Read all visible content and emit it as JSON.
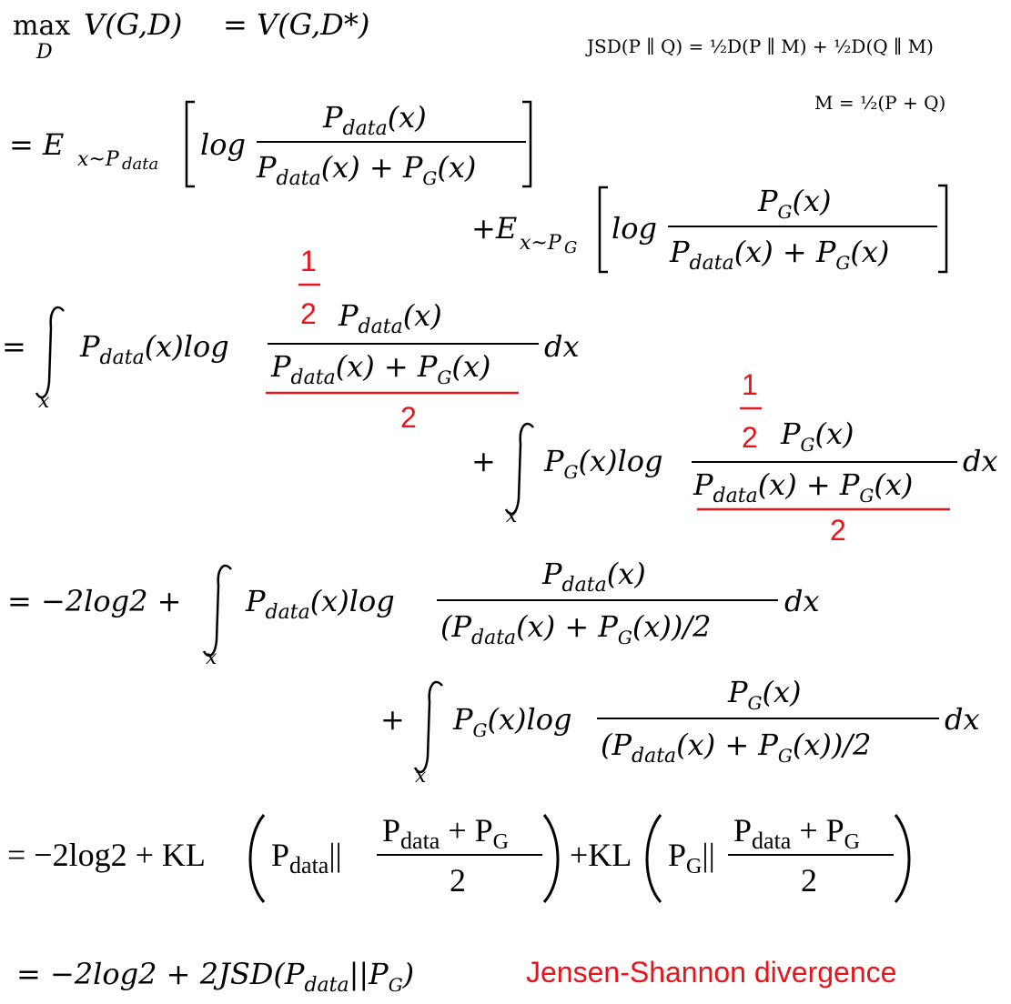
{
  "texts": {
    "max": "max",
    "max_sub": "D",
    "lhs1": "V(G,D)",
    "eq1": "= V(G,D*)",
    "jsd_def": "JSD(P ∥ Q) = ½D(P ∥ M) + ½D(Q ∥ M)",
    "m_def": "M = ½(P + Q)",
    "l2_prefix": "= E",
    "l2_sub": "x~P",
    "l2_subsub": "data",
    "log": "log",
    "pdata_x": "P",
    "data_sub": "data",
    "x_paren": "(x)",
    "plus": "+",
    "pg": "P",
    "g_sub": "G",
    "l3_prefix": "+E",
    "l3_sub": "x~P",
    "l3_subsub": "G",
    "eq_int": "=",
    "int_var": "x",
    "dx": "dx",
    "half_num": "1",
    "half_den": "2",
    "two": "2",
    "l6_prefix": "= −2log2 +",
    "kl_line": "= −2log2 + KL",
    "kl2": "+KL",
    "last_line": "= −2log2 + 2JSD(P",
    "last_close": "||P",
    "last_end": ")",
    "jsd_label": "Jensen-Shannon divergence"
  }
}
